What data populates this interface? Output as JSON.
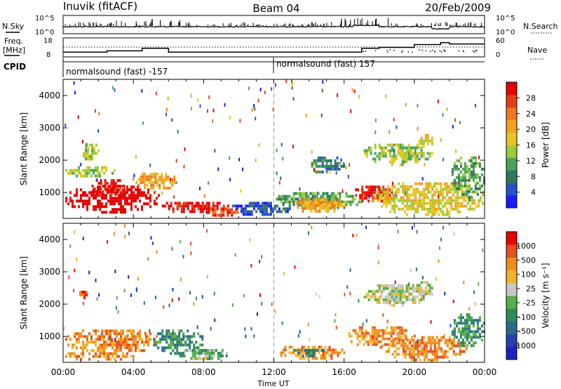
{
  "header": {
    "station": "Inuvik (fitACF)",
    "beam": "Beam 04",
    "date": "20/Feb/2009"
  },
  "panels": {
    "nsky_label": "N.Sky",
    "nsearch_label": "N.Search",
    "freq_label_1": "Freq.",
    "freq_label_2": "[MHz]",
    "nave_label": "Nave",
    "cpid_label": "CPID",
    "cpid_1": "normalsound (fast) -157",
    "cpid_2": "normalsound (fast) 157"
  },
  "colorbars": {
    "power": {
      "label": "Power [dB]",
      "ticks": [
        "28",
        "24",
        "20",
        "16",
        "12",
        "8",
        "4"
      ],
      "colors": [
        "#1a1aff",
        "#2850c8",
        "#2e7a58",
        "#4aa35a",
        "#9ccc3a",
        "#e6c61e",
        "#f5a020",
        "#f0781e",
        "#e63c14",
        "#e60000"
      ]
    },
    "velocity": {
      "label": "Velocity [m s⁻¹]",
      "ticks": [
        "1000",
        "500",
        "100",
        "25",
        "-25",
        "-100",
        "-500",
        "-1000"
      ],
      "colors": [
        "#1e1ec8",
        "#2840b4",
        "#2a6a8c",
        "#2e8a5a",
        "#55b045",
        "#c8c8c8",
        "#f0b428",
        "#f08c1e",
        "#e6501e",
        "#e60000"
      ]
    }
  },
  "chart_data": [
    {
      "type": "line",
      "title": "",
      "series": [
        {
          "name": "N.Sky",
          "values": []
        },
        {
          "name": "N.Search",
          "values": []
        }
      ],
      "y_ticks": [
        "10^5",
        "10^0"
      ],
      "x_ticks": []
    },
    {
      "type": "line",
      "series": [
        {
          "name": "Freq.",
          "x_hours": [
            0,
            2.5,
            4.5,
            6,
            11,
            17,
            18,
            20,
            21.5,
            22,
            24
          ],
          "values": [
            10.5,
            11.2,
            12.5,
            10.5,
            10.5,
            12.5,
            13,
            14.5,
            15.5,
            14.8,
            14.8
          ]
        },
        {
          "name": "Nave",
          "values": []
        }
      ],
      "y_left_ticks": [
        "18",
        "8"
      ],
      "y_right_ticks": [
        "60",
        "0"
      ]
    },
    {
      "type": "heatmap",
      "quantity": "Power",
      "unit": "dB",
      "ylabel": "Slant Range [km]",
      "yticks": [
        1000,
        2000,
        3000,
        4000
      ],
      "ylim": [
        200,
        4500
      ],
      "xlim_hours": [
        0,
        24
      ],
      "patches": [
        {
          "t": [
            0,
            5.5
          ],
          "r": [
            400,
            1300
          ],
          "level": 10
        },
        {
          "t": [
            1.5,
            3.5
          ],
          "r": [
            900,
            1500
          ],
          "level": 9
        },
        {
          "t": [
            5.5,
            9.5
          ],
          "r": [
            400,
            800
          ],
          "level": 9
        },
        {
          "t": [
            8,
            10
          ],
          "r": [
            300,
            600
          ],
          "level": 8
        },
        {
          "t": [
            9.5,
            13
          ],
          "r": [
            300,
            800
          ],
          "level": 1
        },
        {
          "t": [
            12,
            17
          ],
          "r": [
            500,
            1100
          ],
          "level": 3
        },
        {
          "t": [
            13,
            16
          ],
          "r": [
            400,
            900
          ],
          "level": 6
        },
        {
          "t": [
            16.5,
            19
          ],
          "r": [
            700,
            1300
          ],
          "level": 9
        },
        {
          "t": [
            17.5,
            24
          ],
          "r": [
            300,
            1400
          ],
          "level": 5
        },
        {
          "t": [
            17,
            21
          ],
          "r": [
            1900,
            2600
          ],
          "level": 4
        },
        {
          "t": [
            20,
            21
          ],
          "r": [
            2400,
            2900
          ],
          "level": 5
        },
        {
          "t": [
            22,
            24
          ],
          "r": [
            800,
            2200
          ],
          "level": 3
        },
        {
          "t": [
            1,
            2
          ],
          "r": [
            2000,
            2600
          ],
          "level": 4
        },
        {
          "t": [
            0,
            3
          ],
          "r": [
            1500,
            1900
          ],
          "level": 4
        },
        {
          "t": [
            4,
            6.5
          ],
          "r": [
            1100,
            1700
          ],
          "level": 6
        },
        {
          "t": [
            14,
            16
          ],
          "r": [
            1600,
            2200
          ],
          "level": 2
        }
      ]
    },
    {
      "type": "heatmap",
      "quantity": "Velocity",
      "unit": "m s-1",
      "ylabel": "Slant Range [km]",
      "yticks": [
        1000,
        2000,
        3000,
        4000
      ],
      "ylim": [
        200,
        4500
      ],
      "xlim_hours": [
        0,
        24
      ],
      "xticks": [
        "00:00",
        "04:00",
        "08:00",
        "12:00",
        "16:00",
        "20:00",
        "00:00"
      ],
      "xlabel": "Time UT",
      "patches": [
        {
          "t": [
            0,
            5.5
          ],
          "r": [
            500,
            1300
          ],
          "level": 7
        },
        {
          "t": [
            0,
            4
          ],
          "r": [
            300,
            600
          ],
          "level": 7
        },
        {
          "t": [
            5,
            8
          ],
          "r": [
            500,
            1300
          ],
          "level": 3
        },
        {
          "t": [
            6.5,
            9.5
          ],
          "r": [
            300,
            700
          ],
          "level": 4
        },
        {
          "t": [
            7,
            9
          ],
          "r": [
            300,
            450
          ],
          "level": 5
        },
        {
          "t": [
            12,
            16
          ],
          "r": [
            300,
            800
          ],
          "level": 7
        },
        {
          "t": [
            13,
            15
          ],
          "r": [
            400,
            700
          ],
          "level": 3
        },
        {
          "t": [
            16,
            20
          ],
          "r": [
            700,
            1400
          ],
          "level": 7
        },
        {
          "t": [
            18,
            23
          ],
          "r": [
            300,
            1100
          ],
          "level": 7
        },
        {
          "t": [
            22,
            24
          ],
          "r": [
            700,
            1800
          ],
          "level": 3
        },
        {
          "t": [
            17,
            21
          ],
          "r": [
            2000,
            2700
          ],
          "level": 5
        },
        {
          "t": [
            0.8,
            1.4
          ],
          "r": [
            2200,
            2500
          ],
          "level": 8
        },
        {
          "t": [
            20,
            21
          ],
          "r": [
            2300,
            2800
          ],
          "level": 5
        }
      ]
    }
  ]
}
